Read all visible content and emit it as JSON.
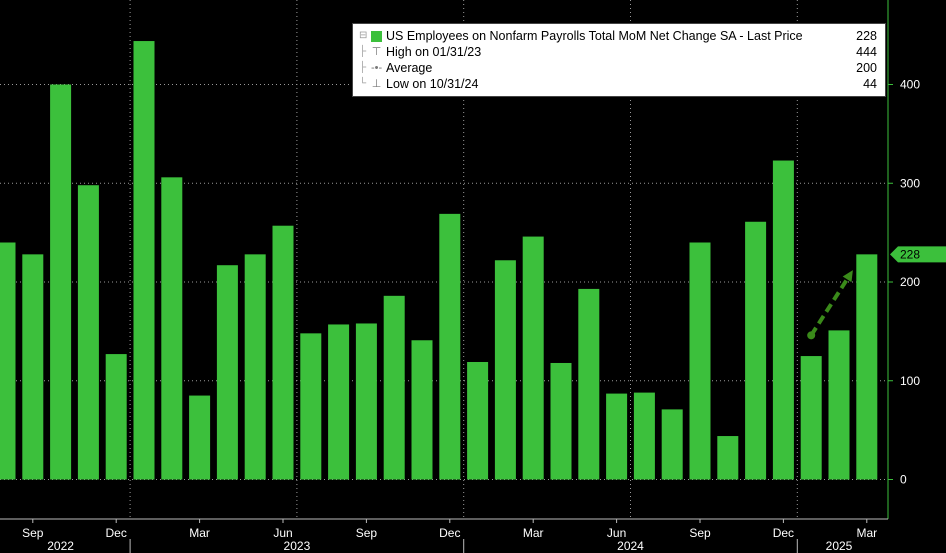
{
  "chart_data": {
    "type": "bar",
    "colors": {
      "bar": "#3cc03c",
      "background": "#000000",
      "grid": "#9a9a9a",
      "axis_text": "#ffffff",
      "arrow": "#3a8a1a",
      "last_price_tag": "#3cc03c"
    },
    "grid": true,
    "legend_placement": "top-right",
    "ylim": [
      -45,
      470
    ],
    "yticks": [
      0,
      100,
      200,
      300,
      400
    ],
    "categories": [
      "2022-08",
      "2022-09",
      "2022-10",
      "2022-11",
      "2022-12",
      "2023-01",
      "2023-02",
      "2023-03",
      "2023-04",
      "2023-05",
      "2023-06",
      "2023-07",
      "2023-08",
      "2023-09",
      "2023-10",
      "2023-11",
      "2023-12",
      "2024-01",
      "2024-02",
      "2024-03",
      "2024-04",
      "2024-05",
      "2024-06",
      "2024-07",
      "2024-08",
      "2024-09",
      "2024-10",
      "2024-11",
      "2024-12",
      "2025-01",
      "2025-02",
      "2025-03"
    ],
    "values": [
      240,
      228,
      400,
      298,
      127,
      444,
      306,
      85,
      217,
      228,
      257,
      148,
      157,
      158,
      186,
      141,
      269,
      119,
      222,
      246,
      118,
      193,
      87,
      88,
      71,
      240,
      44,
      261,
      323,
      125,
      151,
      228
    ],
    "x_tick_labels": [
      {
        "index": 1,
        "label": "Sep"
      },
      {
        "index": 4,
        "label": "Dec"
      },
      {
        "index": 7,
        "label": "Mar"
      },
      {
        "index": 10,
        "label": "Jun"
      },
      {
        "index": 13,
        "label": "Sep"
      },
      {
        "index": 16,
        "label": "Dec"
      },
      {
        "index": 19,
        "label": "Mar"
      },
      {
        "index": 22,
        "label": "Jun"
      },
      {
        "index": 25,
        "label": "Sep"
      },
      {
        "index": 28,
        "label": "Dec"
      },
      {
        "index": 31,
        "label": "Mar"
      }
    ],
    "year_labels": [
      {
        "label": "2022",
        "start": 0,
        "end": 4
      },
      {
        "label": "2023",
        "start": 5,
        "end": 16
      },
      {
        "label": "2024",
        "start": 17,
        "end": 28
      },
      {
        "label": "2025",
        "start": 29,
        "end": 31
      }
    ],
    "last_price": {
      "label": "228",
      "value": 228
    },
    "trend_arrow": {
      "from": {
        "index": 29,
        "value": 146
      },
      "to": {
        "index": 30.5,
        "value": 212
      }
    },
    "legend": {
      "series_name": "US Employees on Nonfarm Payrolls Total MoM Net Change SA - Last Price",
      "series_value": "228",
      "rows": [
        {
          "marker": "high-marker-icon",
          "label": "High on 01/31/23",
          "value": "444"
        },
        {
          "marker": "average-marker-icon",
          "label": "Average",
          "value": "200"
        },
        {
          "marker": "low-marker-icon",
          "label": "Low on 10/31/24",
          "value": "44"
        }
      ]
    }
  }
}
